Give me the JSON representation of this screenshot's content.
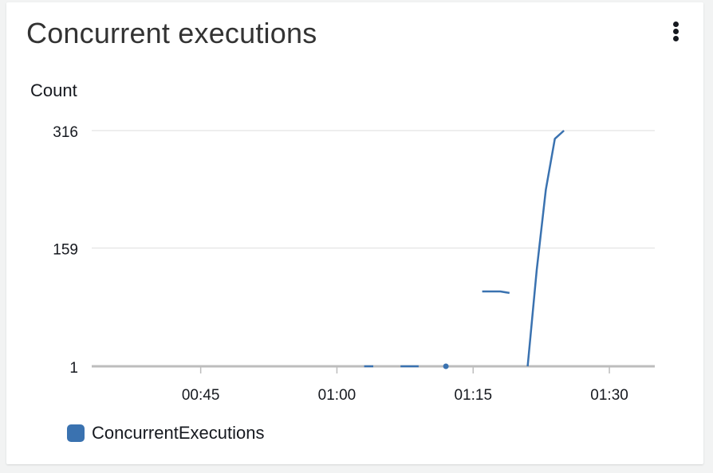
{
  "widget": {
    "title": "Concurrent executions",
    "menu_icon": "vertical-ellipsis-icon"
  },
  "colors": {
    "series": "#3a72b0",
    "grid": "#e8e8e8",
    "axis": "#bdbdbd",
    "text": "#16191f"
  },
  "chart_data": {
    "type": "line",
    "title": "Concurrent executions",
    "ylabel": "Count",
    "xlabel": "",
    "ylim": [
      1,
      316
    ],
    "yticks": [
      {
        "value": 1,
        "label": "1"
      },
      {
        "value": 159,
        "label": "159"
      },
      {
        "value": 316,
        "label": "316"
      }
    ],
    "xlim": [
      "00:33",
      "01:35"
    ],
    "xticks": [
      "00:45",
      "01:00",
      "01:15",
      "01:30"
    ],
    "grid": true,
    "legend": "bottom-left",
    "series": [
      {
        "name": "ConcurrentExecutions",
        "segments": [
          [
            [
              "01:03",
              1
            ],
            [
              "01:04",
              1
            ]
          ],
          [
            [
              "01:07",
              1
            ],
            [
              "01:09",
              1
            ]
          ],
          [
            [
              "01:12",
              1
            ]
          ],
          [
            [
              "01:16",
              101
            ],
            [
              "01:18",
              101
            ],
            [
              "01:19",
              99
            ]
          ],
          [
            [
              "01:21",
              1
            ],
            [
              "01:22",
              130
            ],
            [
              "01:23",
              237
            ],
            [
              "01:24",
              305
            ],
            [
              "01:25",
              316
            ]
          ]
        ]
      }
    ]
  }
}
